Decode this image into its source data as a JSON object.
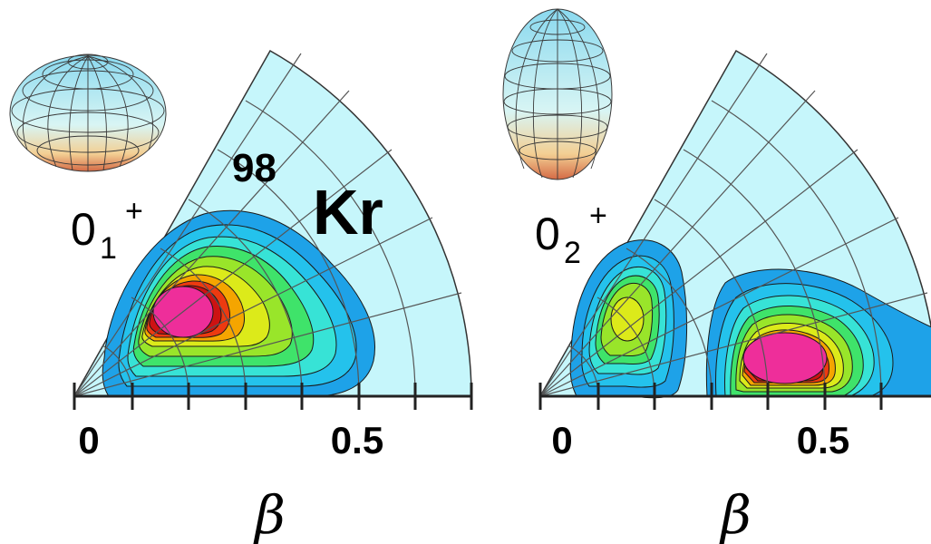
{
  "nucleus": {
    "mass_number": "98",
    "symbol": "Kr"
  },
  "axis": {
    "label": "β",
    "ticks": [
      "0",
      "0.5"
    ]
  },
  "colors": {
    "background_sector": "#c6f6fb",
    "contour_levels": [
      "#1ea2e8",
      "#24c2ec",
      "#37e3d6",
      "#3fe36a",
      "#99e52a",
      "#dcea1a",
      "#f5a500",
      "#ed3a10",
      "#cd1212",
      "#ee2e9a"
    ]
  },
  "panels": [
    {
      "state": {
        "base": "0",
        "subscript": "1",
        "superscript": "+"
      },
      "shape_icon": "oblate-spheroid-icon",
      "peak_deformation": {
        "beta": 0.17,
        "gamma_deg": 40
      }
    },
    {
      "state": {
        "base": "0",
        "subscript": "2",
        "superscript": "+"
      },
      "shape_icon": "prolate-spheroid-icon",
      "peak_deformation": {
        "beta": 0.43,
        "gamma_deg": 5
      }
    }
  ]
}
